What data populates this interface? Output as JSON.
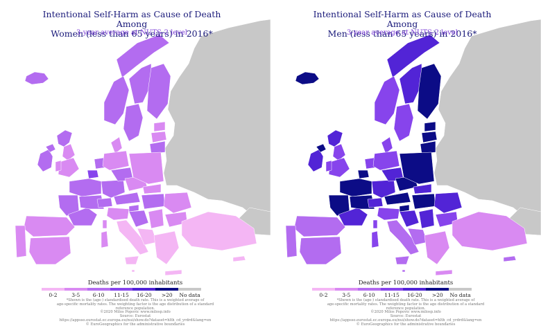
{
  "panels": [
    {
      "title_line1": "Intentional Self-Harm as Cause of Death Among",
      "title_line2": "Women (less than 65 years) in 2016*",
      "subtitle": "3-year average at NUTS-2 level",
      "scale": "women"
    },
    {
      "title_line1": "Intentional Self-Harm as Cause of Death Among",
      "title_line2": "Men (less than 65 years) in 2016*",
      "subtitle": "3-year average at NUTS-2 level",
      "scale": "men"
    }
  ],
  "legend": {
    "title": "Deaths per 100,000 inhabitants",
    "classes": [
      {
        "label": "0-2",
        "color": "#f4b6f4"
      },
      {
        "label": "3-5",
        "color": "#d98af2"
      },
      {
        "label": "6-10",
        "color": "#b36cf0"
      },
      {
        "label": "11-15",
        "color": "#8744ec"
      },
      {
        "label": "16-20",
        "color": "#5224d6"
      },
      {
        "label": ">20",
        "color": "#0c0c86"
      },
      {
        "label": "No data",
        "color": "#c8c8c8"
      }
    ]
  },
  "notes": {
    "line1": "*Shown is the (age-) standardised death rate. This is a weighted average of",
    "line2": "age-specific mortality rates. The weighting factor is the age distribution of a standard",
    "line3": "reference population.",
    "line4": "©2020 Milos Popovic www.milosp.info",
    "line5": "Source: Eurostat",
    "line6": "https://appsso.eurostat.ec.europa.eu/nui/show.do?dataset=hlth_cd_yrdrd&lang=en",
    "line7": "© EuroGeographics for the administrative boundaries"
  },
  "colors": {
    "nodata": "#c8c8c8",
    "sea": "#ffffff",
    "title": "#1a1a7a",
    "subtitle": "#7a3cd6"
  },
  "regions": [
    {
      "name": "iceland",
      "women": 2,
      "men": 5
    },
    {
      "name": "ireland",
      "women": 2,
      "men": 4
    },
    {
      "name": "northern-ireland",
      "women": 2,
      "men": 5
    },
    {
      "name": "scotland",
      "women": 2,
      "men": 4
    },
    {
      "name": "england-north",
      "women": 1,
      "men": 3
    },
    {
      "name": "england-south",
      "women": 1,
      "men": 3
    },
    {
      "name": "wales",
      "women": 1,
      "men": 3
    },
    {
      "name": "norway-north",
      "women": 2,
      "men": 4
    },
    {
      "name": "norway-south",
      "women": 2,
      "men": 3
    },
    {
      "name": "sweden-north",
      "women": 2,
      "men": 4
    },
    {
      "name": "sweden-south",
      "women": 2,
      "men": 3
    },
    {
      "name": "finland",
      "women": 2,
      "men": 5
    },
    {
      "name": "estonia",
      "women": 1,
      "men": 5
    },
    {
      "name": "latvia",
      "women": 1,
      "men": 5
    },
    {
      "name": "lithuania",
      "women": 2,
      "men": 5
    },
    {
      "name": "denmark",
      "women": 1,
      "men": 3
    },
    {
      "name": "netherlands",
      "women": 2,
      "men": 3
    },
    {
      "name": "belgium",
      "women": 3,
      "men": 5
    },
    {
      "name": "france-north",
      "women": 2,
      "men": 5
    },
    {
      "name": "france-west",
      "women": 2,
      "men": 5
    },
    {
      "name": "france-south",
      "women": 2,
      "men": 4
    },
    {
      "name": "france-east",
      "women": 2,
      "men": 5
    },
    {
      "name": "germany-north",
      "women": 1,
      "men": 3
    },
    {
      "name": "germany-south",
      "women": 2,
      "men": 4
    },
    {
      "name": "germany-east",
      "women": 2,
      "men": 4
    },
    {
      "name": "switzerland",
      "women": 2,
      "men": 4
    },
    {
      "name": "austria",
      "women": 2,
      "men": 5
    },
    {
      "name": "czechia",
      "women": 1,
      "men": 5
    },
    {
      "name": "poland",
      "women": 1,
      "men": 5
    },
    {
      "name": "slovakia",
      "women": 1,
      "men": 4
    },
    {
      "name": "hungary",
      "women": 2,
      "men": 5
    },
    {
      "name": "slovenia",
      "women": 2,
      "men": 5
    },
    {
      "name": "croatia",
      "women": 2,
      "men": 4
    },
    {
      "name": "italy-north",
      "women": 1,
      "men": 3
    },
    {
      "name": "italy-south",
      "women": 0,
      "men": 2
    },
    {
      "name": "sardinia",
      "women": 1,
      "men": 3
    },
    {
      "name": "sicily",
      "women": 0,
      "men": 2
    },
    {
      "name": "corsica",
      "women": 1,
      "men": 3
    },
    {
      "name": "spain-north",
      "women": 1,
      "men": 2
    },
    {
      "name": "spain-south",
      "women": 1,
      "men": 2
    },
    {
      "name": "portugal",
      "women": 1,
      "men": 2
    },
    {
      "name": "serbia",
      "women": 1,
      "men": 4
    },
    {
      "name": "romania",
      "women": 1,
      "men": 4
    },
    {
      "name": "bulgaria",
      "women": 1,
      "men": 3
    },
    {
      "name": "balkans-west",
      "women": 0,
      "men": 2
    },
    {
      "name": "greece",
      "women": 0,
      "men": 1
    },
    {
      "name": "crete",
      "women": 0,
      "men": 1
    },
    {
      "name": "turkey",
      "women": 0,
      "men": 1
    },
    {
      "name": "cyprus",
      "women": 0,
      "men": 2
    },
    {
      "name": "malta",
      "women": 0,
      "men": 2
    }
  ]
}
